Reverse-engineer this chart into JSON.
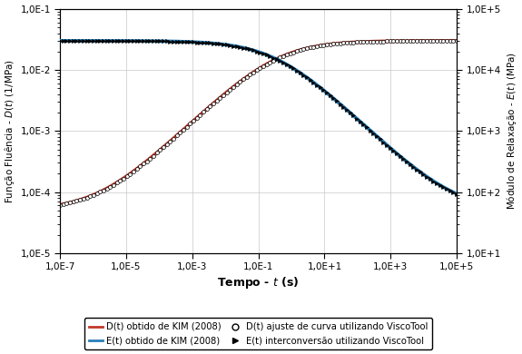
{
  "t_min": 1e-07,
  "t_max": 100000.0,
  "D_min": 1e-05,
  "D_max": 0.1,
  "E_min": 10.0,
  "E_max": 100000.0,
  "D_color": "#c0392b",
  "E_color": "#2980b9",
  "D_0": 5e-05,
  "D_inf": 0.03,
  "E_0": 30000.0,
  "E_inf": 50.0,
  "tau": 0.35,
  "n": 0.52,
  "xlabel": "Tempo - $\\mathit{t}$ (s)",
  "ylabel_left": "Função Fluência - $\\mathit{D(t)}$ (1/MPa)",
  "ylabel_right": "Módulo de Relaxação - $\\mathit{E(t)}$ (MPa)",
  "legend_entries": [
    "D(t) obtido de KIM (2008)",
    "E(t) obtido de KIM (2008)",
    "D(t) ajuste de curva utilizando ViscoTool",
    "E(t) interconversão utilizando ViscoTool"
  ],
  "n_scatter": 120,
  "scatter_size": 8
}
